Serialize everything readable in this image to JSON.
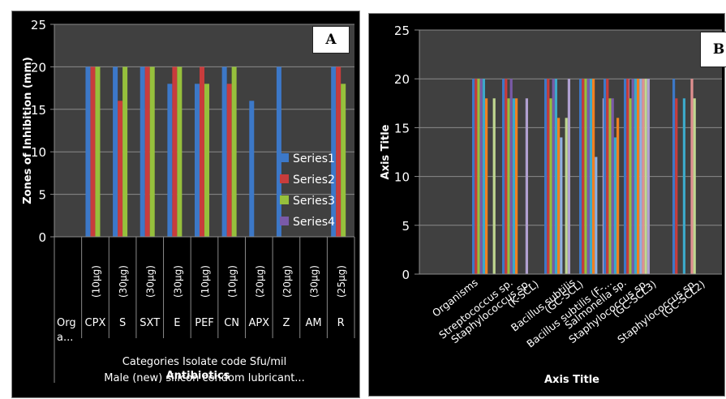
{
  "chart_data": [
    {
      "panel_label": "A",
      "type": "bar",
      "title": "",
      "ylabel": "Zones of Inhibition (mm)",
      "xlabel_lines": [
        "Categories Isolate code Sfu/mil",
        "Male (new) silicon condom lubricant..."
      ],
      "xlabel_overlay": "Antibiotics",
      "ylim": [
        0,
        25
      ],
      "yticks": [
        0,
        5,
        10,
        15,
        20,
        25
      ],
      "ytick_labels": [
        "0",
        "5",
        "10",
        "15",
        "20",
        "25"
      ],
      "grid": true,
      "legend_position": "right",
      "first_category": {
        "name": "Org a...",
        "dose": ""
      },
      "categories": [
        {
          "name": "CPX",
          "dose": "(10µg)"
        },
        {
          "name": "S",
          "dose": "(30µg)"
        },
        {
          "name": "SXT",
          "dose": "(30µg)"
        },
        {
          "name": "E",
          "dose": "(30µg)"
        },
        {
          "name": "PEF",
          "dose": "(10µg)"
        },
        {
          "name": "CN",
          "dose": "(10µg)"
        },
        {
          "name": "APX",
          "dose": "(20µg)"
        },
        {
          "name": "Z",
          "dose": "(20µg)"
        },
        {
          "name": "AM",
          "dose": "(30µg)"
        },
        {
          "name": "R",
          "dose": "(25µg)"
        }
      ],
      "series": [
        {
          "name": "Series1",
          "color": "#3c78c8",
          "values": [
            20,
            20,
            20,
            18,
            18,
            20,
            16,
            20,
            0,
            20
          ]
        },
        {
          "name": "Series2",
          "color": "#c83c3c",
          "values": [
            20,
            16,
            20,
            20,
            20,
            18,
            0,
            0,
            0,
            20
          ]
        },
        {
          "name": "Series3",
          "color": "#96c03c",
          "values": [
            20,
            20,
            20,
            20,
            18,
            20,
            0,
            0,
            0,
            18
          ]
        },
        {
          "name": "Series4",
          "color": "#7a5aa8",
          "values": [
            0,
            0,
            0,
            0,
            0,
            0,
            0,
            0,
            0,
            0
          ]
        }
      ]
    },
    {
      "panel_label": "B",
      "type": "bar",
      "title": "",
      "ylabel": "Axis Title",
      "xlabel": "Axis Title",
      "ylim": [
        0,
        25
      ],
      "yticks": [
        0,
        5,
        10,
        15,
        20,
        25
      ],
      "ytick_labels": [
        "0",
        "5",
        "10",
        "15",
        "20",
        "25"
      ],
      "grid": true,
      "categories": [
        "Organisms",
        "Streptococcus sp.",
        "Staphylococcus sp. (K-SCL)",
        "Bacillus subtilis (GC-SCL)",
        "Bacillus subtilis (F-...",
        "Salmonella sp.",
        "Staphylococcus sp. (GC-SCL3)",
        "Staphylococcus sp. (GC-SCL2)"
      ],
      "series_colors": [
        "#3c78c8",
        "#c83c3c",
        "#96c03c",
        "#7a5aa8",
        "#3ca8c8",
        "#f08020",
        "#90b0e0",
        "#e09090",
        "#c0d890",
        "#b0a0d0"
      ],
      "groups": [
        {
          "category": "Organisms",
          "values": []
        },
        {
          "category": "Streptococcus sp.",
          "values": [
            20,
            20,
            20,
            20,
            20,
            18,
            0,
            0,
            18,
            0
          ]
        },
        {
          "category": "Staphylococcus sp. (K-SCL)",
          "values": [
            20,
            20,
            18,
            20,
            18,
            18,
            0,
            0,
            0,
            18
          ]
        },
        {
          "category": "Bacillus subtilis (GC-SCL)",
          "values": [
            20,
            20,
            18,
            20,
            20,
            16,
            14,
            0,
            16,
            20
          ]
        },
        {
          "category": "Bacillus subtilis (F-...",
          "values": [
            20,
            20,
            20,
            20,
            20,
            20,
            12,
            0,
            0,
            18
          ]
        },
        {
          "category": "Salmonella sp.",
          "values": [
            20,
            20,
            18,
            18,
            14,
            16,
            0,
            0,
            0,
            20
          ]
        },
        {
          "category": "Staphylococcus sp. (GC-SCL3)",
          "values": [
            20,
            20,
            18,
            20,
            20,
            20,
            20,
            20,
            20,
            20
          ]
        },
        {
          "category": "Staphylococcus sp. (GC-SCL2)",
          "values": [
            20,
            18,
            0,
            0,
            18,
            0,
            0,
            20,
            18,
            0
          ]
        }
      ]
    }
  ]
}
